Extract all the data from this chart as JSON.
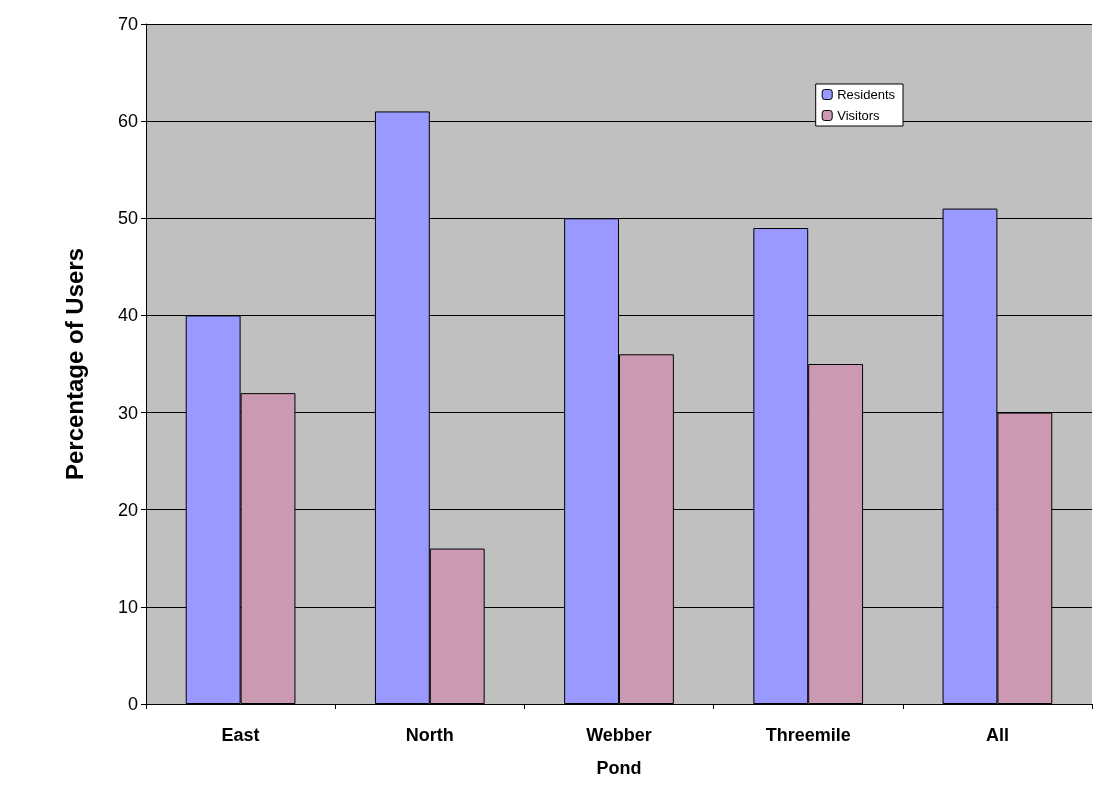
{
  "chart_data": {
    "type": "bar",
    "xlabel": "Pond",
    "ylabel": "Percentage of Users",
    "categories": [
      "East",
      "North",
      "Webber",
      "Threemile",
      "All"
    ],
    "series": [
      {
        "name": "Residents",
        "color": "#9999ff",
        "values": [
          40,
          61,
          50,
          49,
          51
        ]
      },
      {
        "name": "Visitors",
        "color": "#cc99b3",
        "values": [
          32,
          16,
          36,
          35,
          30
        ]
      }
    ],
    "ylim": [
      0,
      70
    ],
    "yticks": [
      0,
      10,
      20,
      30,
      40,
      50,
      60,
      70
    ],
    "grid": "y",
    "legend": "top right"
  }
}
